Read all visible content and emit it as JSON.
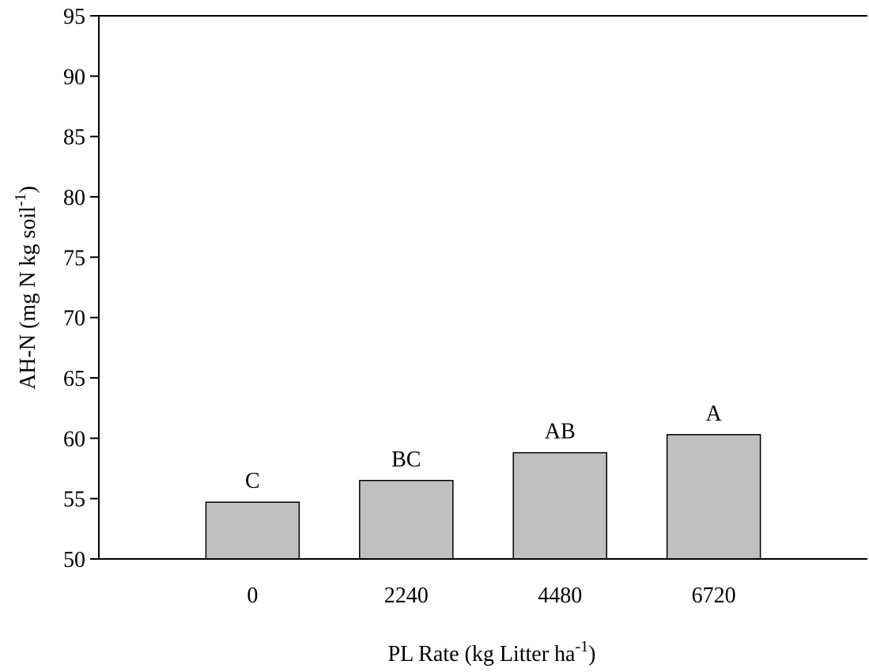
{
  "chart_data": {
    "type": "bar",
    "categories": [
      "0",
      "2240",
      "4480",
      "6720"
    ],
    "values": [
      54.7,
      56.5,
      58.8,
      60.3
    ],
    "data_labels": [
      "C",
      "BC",
      "AB",
      "A"
    ],
    "title": "",
    "xlabel": {
      "text": "PL Rate (kg Litter ha",
      "superscript": "-1",
      "suffix": ")"
    },
    "ylabel": {
      "text": "AH-N (mg N kg soil",
      "superscript": "-1",
      "suffix": ")"
    },
    "ylim": [
      50,
      95
    ],
    "yticks": [
      50,
      55,
      60,
      65,
      70,
      75,
      80,
      85,
      90,
      95
    ],
    "grid": false,
    "legend": "none",
    "colors": {
      "bar_fill": "#c0c0c0",
      "bar_stroke": "#000000",
      "axis": "#000000",
      "background": "#ffffff"
    }
  }
}
